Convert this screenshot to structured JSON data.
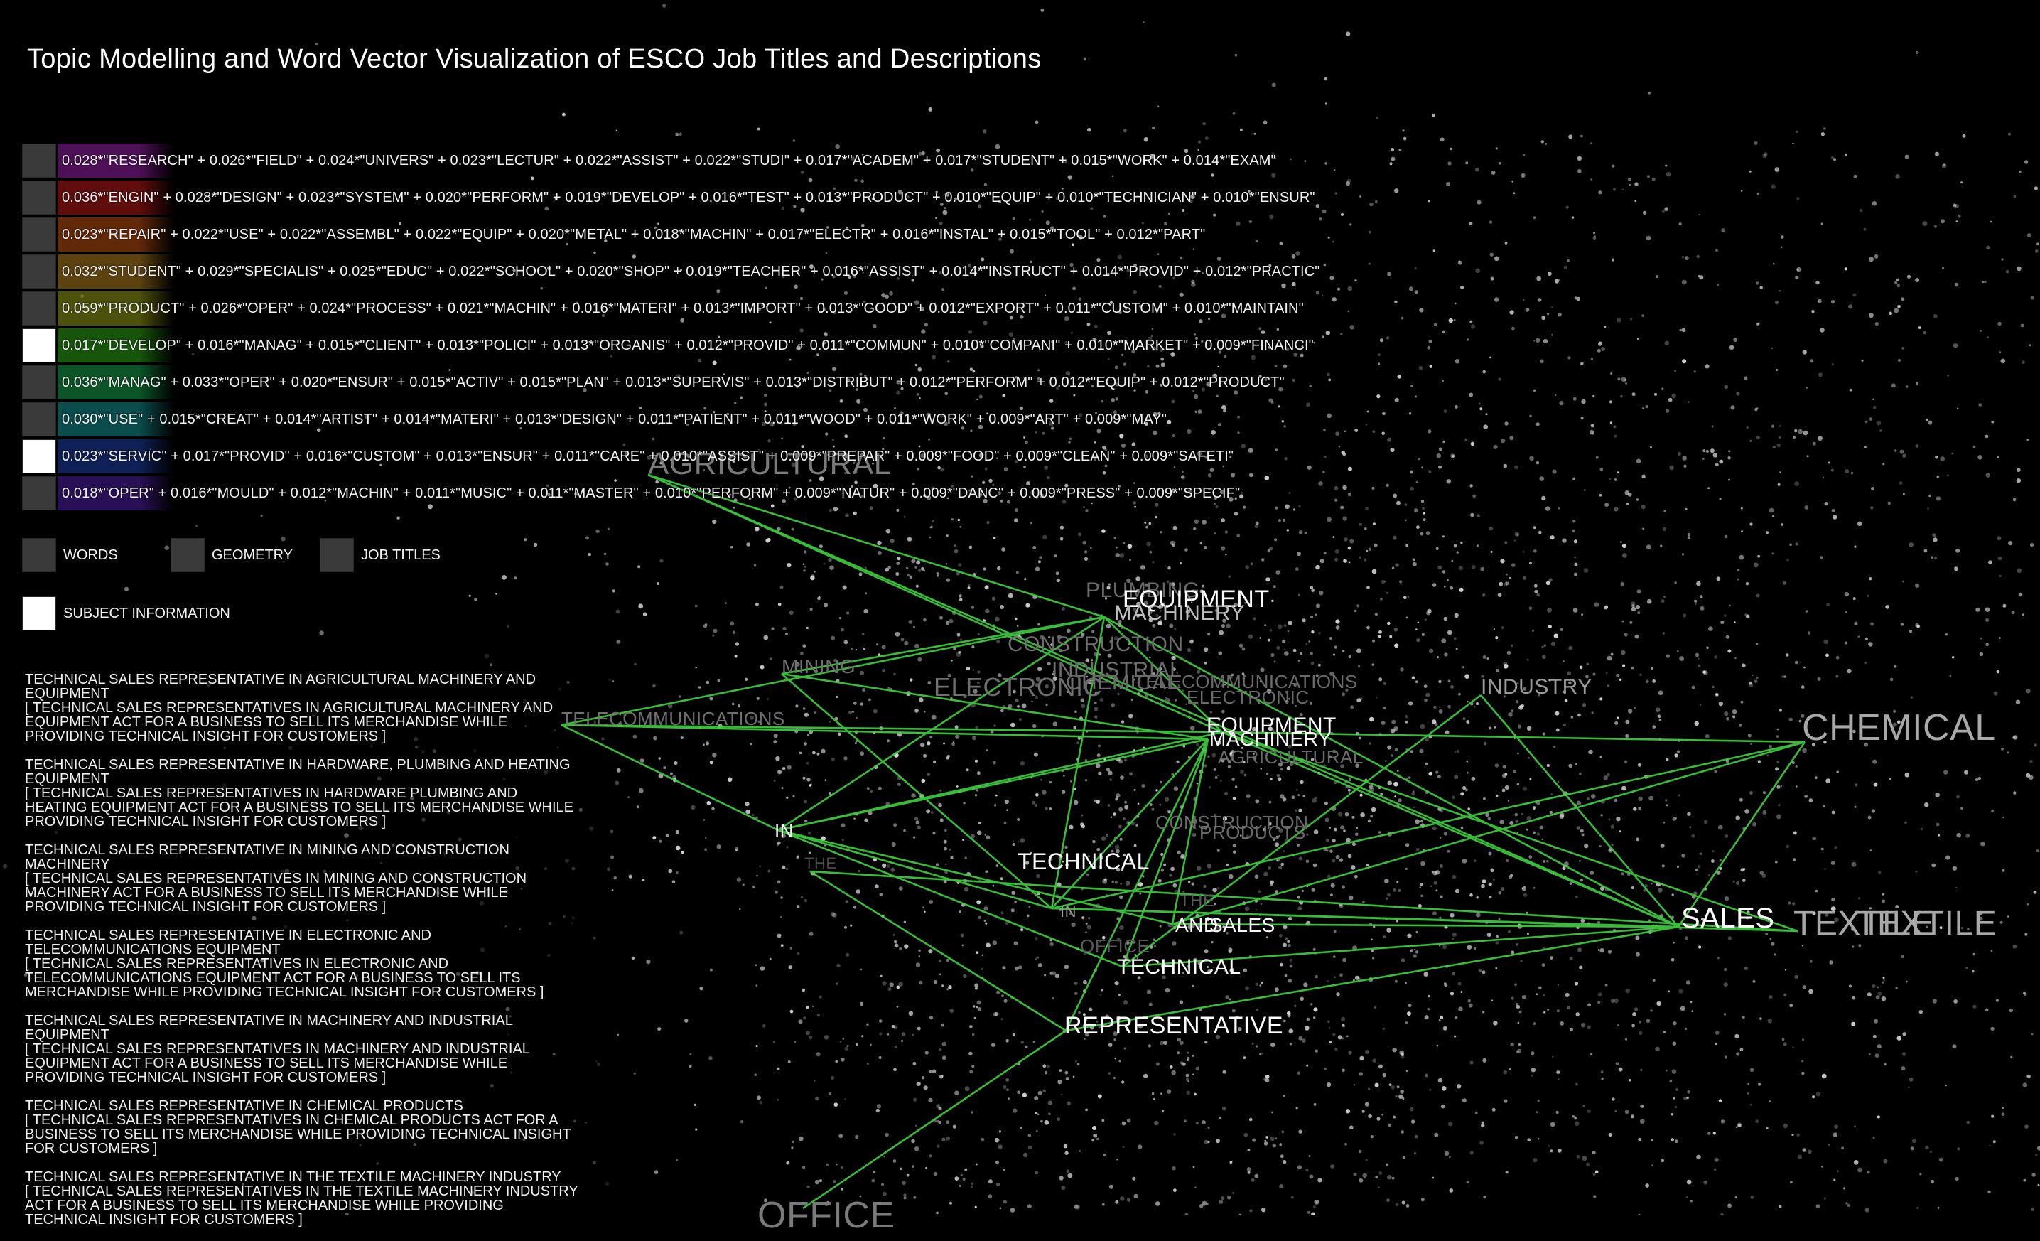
{
  "title": "Topic Modelling and Word Vector Visualization of ESCO Job Titles and Descriptions",
  "topics": [
    {
      "text": "0.028*\"RESEARCH\" + 0.026*\"FIELD\" + 0.024*\"UNIVERS\" + 0.023*\"LECTUR\" + 0.022*\"ASSIST\" + 0.022*\"STUDI\" + 0.017*\"ACADEM\" + 0.017*\"STUDENT\" + 0.015*\"WORK\" + 0.014*\"EXAM\"",
      "color": "#8c1d9c",
      "toggle_on": false
    },
    {
      "text": "0.036*\"ENGIN\" + 0.028*\"DESIGN\" + 0.023*\"SYSTEM\" + 0.020*\"PERFORM\" + 0.019*\"DEVELOP\" + 0.016*\"TEST\" + 0.013*\"PRODUCT\" + 0.010*\"EQUIP\" + 0.010*\"TECHNICIAN\" + 0.010*\"ENSUR\"",
      "color": "#b01818",
      "toggle_on": false
    },
    {
      "text": "0.023*\"REPAIR\" + 0.022*\"USE\" + 0.022*\"ASSEMBL\" + 0.022*\"EQUIP\" + 0.020*\"METAL\" + 0.018*\"MACHIN\" + 0.017*\"ELECTR\" + 0.016*\"INSTAL\" + 0.015*\"TOOL\" + 0.012*\"PART\"",
      "color": "#b34a10",
      "toggle_on": false
    },
    {
      "text": "0.032*\"STUDENT\" + 0.029*\"SPECIALIS\" + 0.025*\"EDUC\" + 0.022*\"SCHOOL\" + 0.020*\"SHOP\" + 0.019*\"TEACHER\" + 0.016*\"ASSIST\" + 0.014*\"INSTRUCT\" + 0.014*\"PROVID\" + 0.012*\"PRACTIC\"",
      "color": "#a8781a",
      "toggle_on": false
    },
    {
      "text": "0.059*\"PRODUCT\" + 0.026*\"OPER\" + 0.024*\"PROCESS\" + 0.021*\"MACHIN\" + 0.016*\"MATERI\" + 0.013*\"IMPORT\" + 0.013*\"GOOD\" + 0.012*\"EXPORT\" + 0.011*\"CUSTOM\" + 0.010*\"MAINTAIN\"",
      "color": "#8a9414",
      "toggle_on": false
    },
    {
      "text": "0.017*\"DEVELOP\" + 0.016*\"MANAG\" + 0.015*\"CLIENT\" + 0.013*\"POLICI\" + 0.013*\"ORGANIS\" + 0.012*\"PROVID\" + 0.011*\"COMMUN\" + 0.010*\"COMPANI\" + 0.010*\"MARKET\" + 0.009*\"FINANCI\"",
      "color": "#2a9a14",
      "toggle_on": true
    },
    {
      "text": "0.036*\"MANAG\" + 0.033*\"OPER\" + 0.020*\"ENSUR\" + 0.015*\"ACTIV\" + 0.015*\"PLAN\" + 0.013*\"SUPERVIS\" + 0.013*\"DISTRIBUT\" + 0.012*\"PERFORM\" + 0.012*\"EQUIP\" + 0.012*\"PRODUCT\"",
      "color": "#149a4a",
      "toggle_on": false
    },
    {
      "text": "0.030*\"USE\" + 0.015*\"CREAT\" + 0.014*\"ARTIST\" + 0.014*\"MATERI\" + 0.013*\"DESIGN\" + 0.011*\"PATIENT\" + 0.011*\"WOOD\" + 0.011*\"WORK\" + 0.009*\"ART\" + 0.009*\"MAY\"",
      "color": "#148a8a",
      "toggle_on": false
    },
    {
      "text": "0.023*\"SERVIC\" + 0.017*\"PROVID\" + 0.016*\"CUSTOM\" + 0.013*\"ENSUR\" + 0.011*\"CARE\" + 0.010*\"ASSIST\" + 0.009*\"PREPAR\" + 0.009*\"FOOD\" + 0.009*\"CLEAN\" + 0.009*\"SAFETI\"",
      "color": "#1a3a9c",
      "toggle_on": true
    },
    {
      "text": "0.018*\"OPER\" + 0.016*\"MOULD\" + 0.012*\"MACHIN\" + 0.011*\"MUSIC\" + 0.011*\"MASTER\" + 0.010*\"PERFORM\" + 0.009*\"NATUR\" + 0.009*\"DANC\" + 0.009*\"PRESS\" + 0.009*\"SPECIF\"",
      "color": "#4a1d9c",
      "toggle_on": false
    }
  ],
  "legend": {
    "words": "WORDS",
    "geometry": "GEOMETRY",
    "job_titles": "JOB TITLES",
    "subject_information": "SUBJECT INFORMATION"
  },
  "jobs": [
    {
      "title": "TECHNICAL SALES REPRESENTATIVE IN AGRICULTURAL MACHINERY AND EQUIPMENT",
      "description": "[ TECHNICAL SALES REPRESENTATIVES IN AGRICULTURAL MACHINERY AND EQUIPMENT ACT FOR A BUSINESS TO SELL ITS MERCHANDISE WHILE PROVIDING TECHNICAL INSIGHT FOR CUSTOMERS ]"
    },
    {
      "title": "TECHNICAL SALES REPRESENTATIVE IN HARDWARE, PLUMBING AND HEATING EQUIPMENT",
      "description": "[ TECHNICAL SALES REPRESENTATIVES IN HARDWARE PLUMBING AND HEATING EQUIPMENT ACT FOR A BUSINESS TO SELL ITS MERCHANDISE WHILE PROVIDING TECHNICAL INSIGHT FOR CUSTOMERS ]"
    },
    {
      "title": "TECHNICAL SALES REPRESENTATIVE IN MINING AND CONSTRUCTION MACHINERY",
      "description": "[ TECHNICAL SALES REPRESENTATIVES IN MINING AND CONSTRUCTION MACHINERY ACT FOR A BUSINESS TO SELL ITS MERCHANDISE WHILE PROVIDING TECHNICAL INSIGHT FOR CUSTOMERS ]"
    },
    {
      "title": "TECHNICAL SALES REPRESENTATIVE IN ELECTRONIC AND TELECOMMUNICATIONS EQUIPMENT",
      "description": "[ TECHNICAL SALES REPRESENTATIVES IN ELECTRONIC AND TELECOMMUNICATIONS EQUIPMENT ACT FOR A BUSINESS TO SELL ITS MERCHANDISE WHILE PROVIDING TECHNICAL INSIGHT FOR CUSTOMERS ]"
    },
    {
      "title": "TECHNICAL SALES REPRESENTATIVE IN MACHINERY AND INDUSTRIAL EQUIPMENT",
      "description": "[ TECHNICAL SALES REPRESENTATIVES IN MACHINERY AND INDUSTRIAL EQUIPMENT ACT FOR A BUSINESS TO SELL ITS MERCHANDISE WHILE PROVIDING TECHNICAL INSIGHT FOR CUSTOMERS ]"
    },
    {
      "title": "TECHNICAL SALES REPRESENTATIVE IN CHEMICAL PRODUCTS",
      "description": "[ TECHNICAL SALES REPRESENTATIVES IN CHEMICAL PRODUCTS ACT FOR A BUSINESS TO SELL ITS MERCHANDISE WHILE PROVIDING TECHNICAL INSIGHT FOR CUSTOMERS ]"
    },
    {
      "title": "TECHNICAL SALES REPRESENTATIVE IN THE TEXTILE MACHINERY INDUSTRY",
      "description": "[ TECHNICAL SALES REPRESENTATIVES IN THE TEXTILE MACHINERY INDUSTRY ACT FOR A BUSINESS TO SELL ITS MERCHANDISE WHILE PROVIDING TECHNICAL INSIGHT FOR CUSTOMERS ]"
    }
  ],
  "graph_words": {
    "agricultural": "AGRICULTURAL",
    "equipment": "EQUIPMENT",
    "machinery": "MACHINERY",
    "plumbing": "PLUMBING",
    "construction": "CONSTRUCTION",
    "industrial": "INDUSTRIAL",
    "mining": "MINING",
    "electronic": "ELECTRONIC",
    "telecommunications": "TELECOMMUNICATIONS",
    "chemical": "CHEMICAL",
    "industry": "INDUSTRY",
    "products": "PRODUCTS",
    "technical": "TECHNICAL",
    "sales": "SALES",
    "textile": "TEXTILE",
    "representative": "REPRESENTATIVE",
    "and": "AND",
    "in": "IN",
    "the": "THE",
    "office": "OFFICE"
  },
  "colors": {
    "background": "#000000",
    "connection": "#3fd23f",
    "point": "#d9d9d9",
    "toggle_off": "#3a3a3a",
    "toggle_on": "#ffffff"
  }
}
